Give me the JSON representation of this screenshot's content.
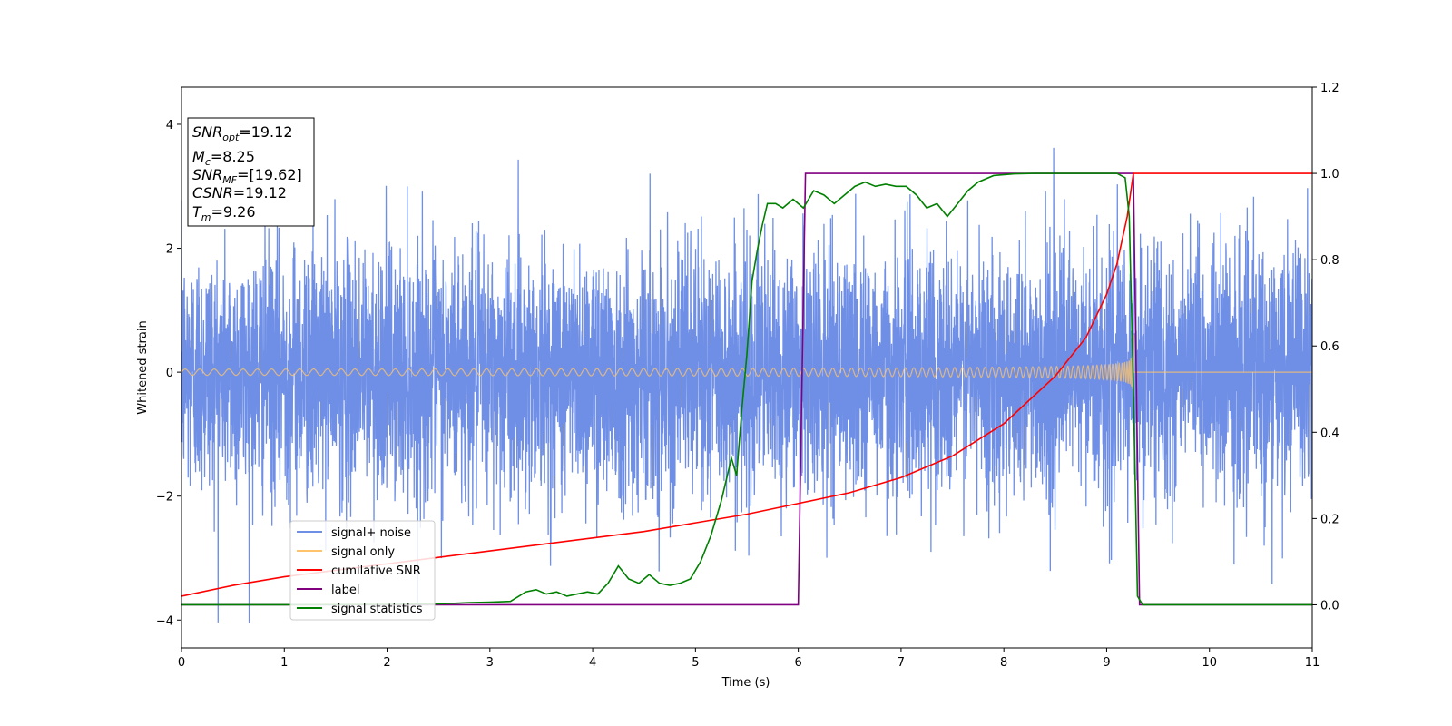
{
  "chart_data": {
    "type": "line",
    "xlabel": "Time (s)",
    "ylabel": "Whitened strain",
    "xlim": [
      0,
      11
    ],
    "ylim": [
      -4.45,
      4.6
    ],
    "y2lim": [
      -0.1,
      1.2
    ],
    "xticks": [
      "0",
      "1",
      "2",
      "3",
      "4",
      "5",
      "6",
      "7",
      "8",
      "9",
      "10",
      "11"
    ],
    "yticks": [
      "−4",
      "−2",
      "0",
      "2",
      "4"
    ],
    "y2ticks": [
      "0.0",
      "0.2",
      "0.4",
      "0.6",
      "0.8",
      "1.0",
      "1.2"
    ],
    "legend_position": "lower-left",
    "annotation": {
      "snr_opt": {
        "main": "SNR",
        "sub": "opt",
        "value": "=19.12"
      },
      "mc": {
        "main": "M",
        "sub": "c",
        "value": "=8.25"
      },
      "snr_mf": {
        "main": "SNR",
        "sub": "MF",
        "value": "=[19.62]"
      },
      "csnr": {
        "main": "CSNR",
        "value": "=19.12"
      },
      "tm": {
        "main": "T",
        "sub": "m",
        "value": "=9.26"
      }
    },
    "colors": {
      "signal_noise": "#6f8fe6",
      "signal_only": "#ffc46b",
      "cumulative_snr": "#ff0000",
      "label": "#800080",
      "signal_statistics": "#008000"
    },
    "series": [
      {
        "name": "signal+ noise",
        "axis": "left",
        "description_values": {
          "noise_sigma": 1.0,
          "peak_max": 4.2,
          "peak_min": -4.05
        }
      },
      {
        "name": "signal only",
        "axis": "left",
        "chirp": {
          "t_start": 0,
          "t_merge": 9.26,
          "amp_start": 0.05,
          "amp_merge": 1.3
        }
      },
      {
        "name": "cumilative SNR",
        "axis": "right",
        "x": [
          0,
          0.5,
          1,
          1.5,
          2,
          2.5,
          3,
          3.5,
          4,
          4.5,
          5,
          5.5,
          6,
          6.5,
          7,
          7.5,
          8,
          8.5,
          8.8,
          9,
          9.1,
          9.2,
          9.26,
          9.3,
          10,
          11
        ],
        "y": [
          0.02,
          0.045,
          0.065,
          0.08,
          0.095,
          0.11,
          0.125,
          0.14,
          0.155,
          0.17,
          0.19,
          0.21,
          0.235,
          0.26,
          0.295,
          0.345,
          0.42,
          0.53,
          0.62,
          0.72,
          0.79,
          0.9,
          1.0,
          1.0,
          1.0,
          1.0
        ]
      },
      {
        "name": "label",
        "axis": "right",
        "x": [
          0,
          6.0,
          6.07,
          9.26,
          9.32,
          11
        ],
        "y": [
          0,
          0,
          1,
          1,
          0,
          0
        ]
      },
      {
        "name": "signal statistics",
        "axis": "right",
        "x": [
          0,
          1,
          2,
          2.5,
          2.8,
          3.0,
          3.2,
          3.35,
          3.45,
          3.55,
          3.65,
          3.75,
          3.85,
          3.95,
          4.05,
          4.15,
          4.25,
          4.35,
          4.45,
          4.55,
          4.65,
          4.75,
          4.85,
          4.95,
          5.05,
          5.15,
          5.25,
          5.35,
          5.4,
          5.45,
          5.5,
          5.55,
          5.6,
          5.65,
          5.7,
          5.78,
          5.85,
          5.95,
          6.05,
          6.15,
          6.25,
          6.35,
          6.45,
          6.55,
          6.65,
          6.75,
          6.85,
          6.95,
          7.05,
          7.15,
          7.25,
          7.35,
          7.45,
          7.55,
          7.65,
          7.75,
          7.9,
          8.1,
          8.3,
          8.5,
          8.7,
          8.9,
          9.1,
          9.18,
          9.22,
          9.26,
          9.3,
          9.35,
          9.45,
          10,
          11
        ],
        "y": [
          0,
          0,
          0.001,
          0.002,
          0.005,
          0.006,
          0.008,
          0.03,
          0.035,
          0.025,
          0.03,
          0.02,
          0.025,
          0.03,
          0.025,
          0.05,
          0.09,
          0.06,
          0.05,
          0.07,
          0.05,
          0.045,
          0.05,
          0.06,
          0.1,
          0.16,
          0.24,
          0.34,
          0.3,
          0.45,
          0.58,
          0.75,
          0.82,
          0.88,
          0.93,
          0.93,
          0.92,
          0.94,
          0.92,
          0.96,
          0.95,
          0.93,
          0.95,
          0.97,
          0.98,
          0.97,
          0.975,
          0.97,
          0.97,
          0.95,
          0.92,
          0.93,
          0.9,
          0.93,
          0.96,
          0.98,
          0.995,
          0.999,
          1.0,
          1.0,
          1.0,
          1.0,
          1.0,
          0.99,
          0.9,
          0.5,
          0.02,
          0.0,
          0.0,
          0.0,
          0.0
        ]
      }
    ]
  }
}
